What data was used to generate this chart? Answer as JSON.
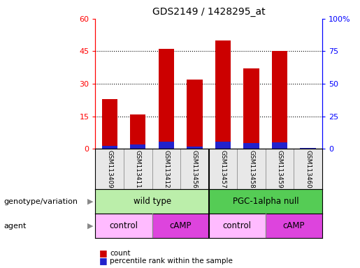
{
  "title": "GDS2149 / 1428295_at",
  "samples": [
    "GSM113409",
    "GSM113411",
    "GSM113412",
    "GSM113456",
    "GSM113457",
    "GSM113458",
    "GSM113459",
    "GSM113460"
  ],
  "counts": [
    23,
    16,
    46,
    32,
    50,
    37,
    45,
    0
  ],
  "percentile_ranks": [
    2.5,
    3.5,
    5.5,
    2.0,
    5.5,
    4.5,
    5.0,
    0.5
  ],
  "ylim_left": [
    0,
    60
  ],
  "ylim_right": [
    0,
    100
  ],
  "yticks_left": [
    0,
    15,
    30,
    45,
    60
  ],
  "ytick_labels_left": [
    "0",
    "15",
    "30",
    "45",
    "60"
  ],
  "yticks_right": [
    0,
    25,
    50,
    75,
    100
  ],
  "ytick_labels_right": [
    "0",
    "25",
    "50",
    "75",
    "100%"
  ],
  "bar_color_red": "#cc0000",
  "bar_color_blue": "#2222cc",
  "bar_width": 0.55,
  "genotype_groups": [
    {
      "label": "wild type",
      "span": [
        0,
        4
      ],
      "color": "#bbeeaa"
    },
    {
      "label": "PGC-1alpha null",
      "span": [
        4,
        8
      ],
      "color": "#55cc55"
    }
  ],
  "agent_groups": [
    {
      "label": "control",
      "span": [
        0,
        2
      ],
      "color": "#ffbbff"
    },
    {
      "label": "cAMP",
      "span": [
        2,
        4
      ],
      "color": "#dd44dd"
    },
    {
      "label": "control",
      "span": [
        4,
        6
      ],
      "color": "#ffbbff"
    },
    {
      "label": "cAMP",
      "span": [
        6,
        8
      ],
      "color": "#dd44dd"
    }
  ],
  "genotype_label": "genotype/variation",
  "agent_label": "agent",
  "legend_count": "count",
  "legend_pct": "percentile rank within the sample",
  "grid_lines": [
    15,
    30,
    45
  ]
}
